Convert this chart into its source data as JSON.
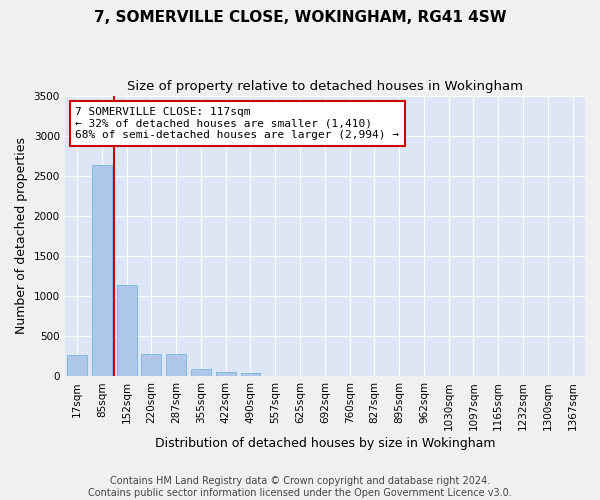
{
  "title": "7, SOMERVILLE CLOSE, WOKINGHAM, RG41 4SW",
  "subtitle": "Size of property relative to detached houses in Wokingham",
  "xlabel": "Distribution of detached houses by size in Wokingham",
  "ylabel": "Number of detached properties",
  "bar_color": "#aec6e8",
  "bar_edge_color": "#6aaed6",
  "background_color": "#dce6f5",
  "grid_color": "#ffffff",
  "categories": [
    "17sqm",
    "85sqm",
    "152sqm",
    "220sqm",
    "287sqm",
    "355sqm",
    "422sqm",
    "490sqm",
    "557sqm",
    "625sqm",
    "692sqm",
    "760sqm",
    "827sqm",
    "895sqm",
    "962sqm",
    "1030sqm",
    "1097sqm",
    "1165sqm",
    "1232sqm",
    "1300sqm",
    "1367sqm"
  ],
  "values": [
    270,
    2640,
    1140,
    280,
    280,
    95,
    55,
    40,
    0,
    0,
    0,
    0,
    0,
    0,
    0,
    0,
    0,
    0,
    0,
    0,
    0
  ],
  "property_line_color": "#cc0000",
  "annotation_line1": "7 SOMERVILLE CLOSE: 117sqm",
  "annotation_line2": "← 32% of detached houses are smaller (1,410)",
  "annotation_line3": "68% of semi-detached houses are larger (2,994) →",
  "annotation_box_color": "#ffffff",
  "annotation_box_edge": "#cc0000",
  "ylim": [
    0,
    3500
  ],
  "yticks": [
    0,
    500,
    1000,
    1500,
    2000,
    2500,
    3000,
    3500
  ],
  "footnote": "Contains HM Land Registry data © Crown copyright and database right 2024.\nContains public sector information licensed under the Open Government Licence v3.0.",
  "title_fontsize": 11,
  "subtitle_fontsize": 9.5,
  "xlabel_fontsize": 9,
  "ylabel_fontsize": 9,
  "tick_fontsize": 7.5,
  "annotation_fontsize": 8,
  "footnote_fontsize": 7
}
